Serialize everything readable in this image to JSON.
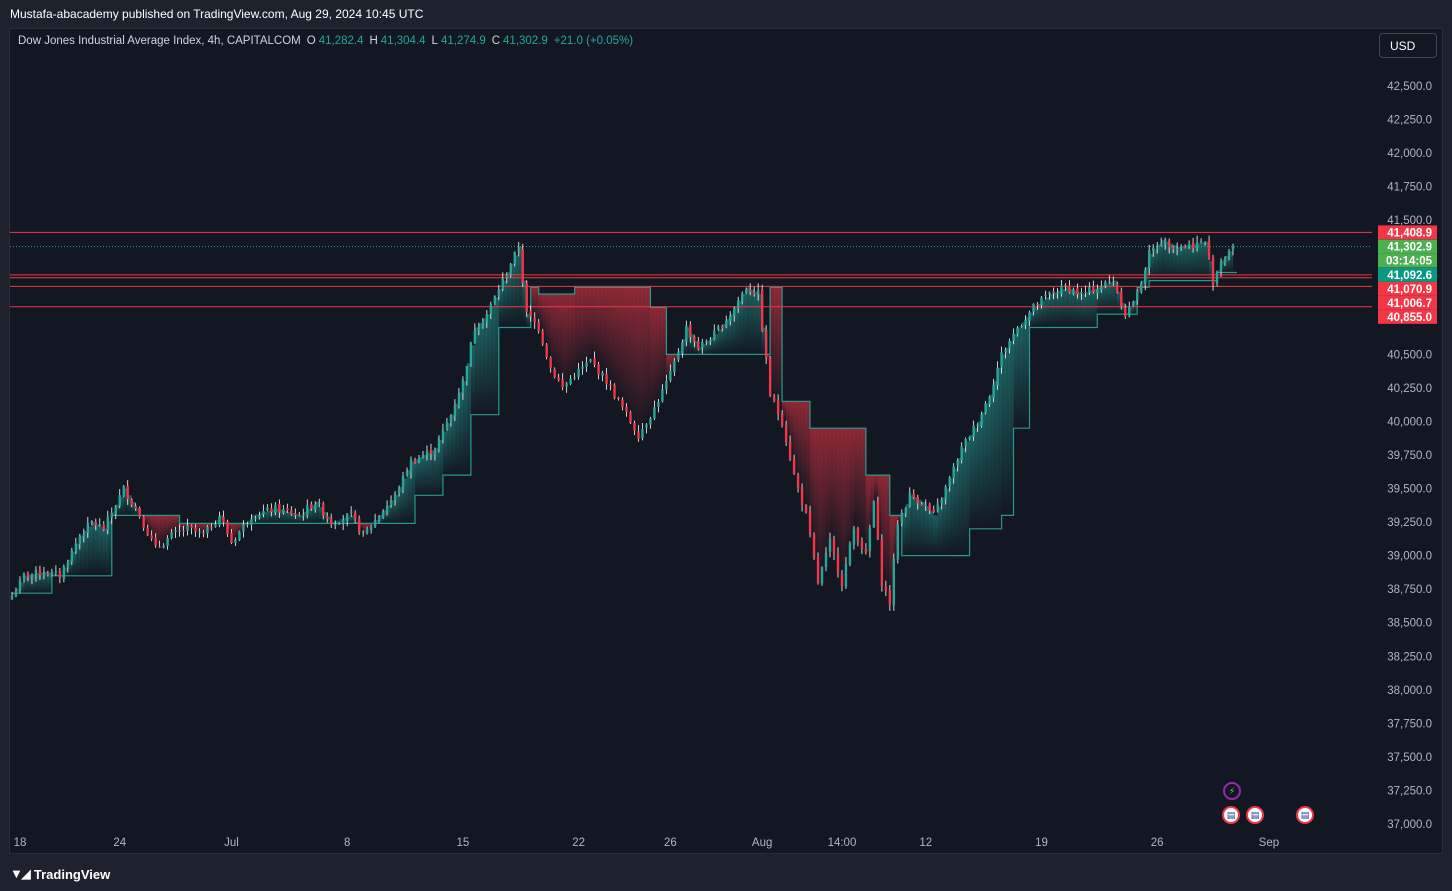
{
  "header": {
    "publisher_line": "Mustafa-abacademy published on TradingView.com, Aug 29, 2024 10:45 UTC"
  },
  "legend": {
    "symbol": "Dow Jones Industrial Average Index, 4h, CAPITALCOM",
    "o_label": "O",
    "o_value": "41,282.4",
    "h_label": "H",
    "h_value": "41,304.4",
    "l_label": "L",
    "l_value": "41,274.9",
    "c_label": "C",
    "c_value": "41,302.9",
    "change": "+21.0 (+0.05%)"
  },
  "currency_button": "USD",
  "footer": {
    "brand": "TradingView"
  },
  "colors": {
    "background": "#131722",
    "up": "#26a69a",
    "down": "#f23645",
    "last_price": "#4caf50",
    "text": "#b2b5be",
    "line": "#f23645"
  },
  "icons": {
    "event_bolt": "lightning-bolt-icon",
    "event_flag": "us-flag-icon",
    "brand": "tradingview-logo-icon"
  },
  "chart_data": {
    "type": "candlestick",
    "title": "Dow Jones Industrial Average Index, 4h, CAPITALCOM",
    "ylim": [
      36950,
      42700
    ],
    "y_ticks": [
      "42,500.0",
      "42,250.0",
      "42,000.0",
      "41,750.0",
      "41,500.0",
      "40,500.0",
      "40,250.0",
      "40,000.0",
      "39,750.0",
      "39,500.0",
      "39,250.0",
      "39,000.0",
      "38,750.0",
      "38,500.0",
      "38,250.0",
      "38,000.0",
      "37,750.0",
      "37,500.0",
      "37,250.0",
      "37,000.0"
    ],
    "y_tick_values": [
      42500,
      42250,
      42000,
      41750,
      41500,
      40500,
      40250,
      40000,
      39750,
      39500,
      39250,
      39000,
      38750,
      38500,
      38250,
      38000,
      37750,
      37500,
      37250,
      37000
    ],
    "x_ticks": [
      "18",
      "24",
      "Jul",
      "8",
      "15",
      "22",
      "26",
      "Aug",
      "14:00",
      "12",
      "19",
      "26",
      "Sep"
    ],
    "x_tick_index": [
      2,
      27,
      55,
      84,
      113,
      142,
      165,
      188,
      208,
      229,
      258,
      287,
      315
    ],
    "horizontal_levels": [
      41408.9,
      41092.6,
      41070.9,
      41006.7,
      40855.0
    ],
    "price_labels": [
      {
        "value": 41408.9,
        "text": "41,408.9",
        "kind": "down"
      },
      {
        "value": 41302.9,
        "text": "41,302.9",
        "kind": "last"
      },
      {
        "value": 41302.9,
        "text": "03:14:05",
        "kind": "countdown"
      },
      {
        "value": 41092.6,
        "text": "41,092.6",
        "kind": "up"
      },
      {
        "value": 41070.9,
        "text": "41,070.9",
        "kind": "down"
      },
      {
        "value": 41006.7,
        "text": "41,006.7",
        "kind": "down"
      },
      {
        "value": 40855.0,
        "text": "40,855.0",
        "kind": "down"
      }
    ],
    "close_anchors": [
      [
        0,
        38700
      ],
      [
        3,
        38850
      ],
      [
        8,
        38880
      ],
      [
        12,
        38850
      ],
      [
        17,
        39150
      ],
      [
        20,
        39250
      ],
      [
        23,
        39200
      ],
      [
        28,
        39500
      ],
      [
        32,
        39300
      ],
      [
        36,
        39050
      ],
      [
        40,
        39150
      ],
      [
        44,
        39200
      ],
      [
        48,
        39150
      ],
      [
        52,
        39300
      ],
      [
        55,
        39100
      ],
      [
        60,
        39300
      ],
      [
        66,
        39350
      ],
      [
        72,
        39300
      ],
      [
        76,
        39400
      ],
      [
        80,
        39250
      ],
      [
        85,
        39300
      ],
      [
        88,
        39150
      ],
      [
        92,
        39300
      ],
      [
        96,
        39450
      ],
      [
        100,
        39700
      ],
      [
        106,
        39800
      ],
      [
        110,
        40050
      ],
      [
        113,
        40300
      ],
      [
        116,
        40700
      ],
      [
        119,
        40800
      ],
      [
        123,
        41050
      ],
      [
        127,
        41300
      ],
      [
        129,
        40800
      ],
      [
        132,
        40700
      ],
      [
        135,
        40400
      ],
      [
        138,
        40250
      ],
      [
        141,
        40350
      ],
      [
        145,
        40450
      ],
      [
        149,
        40300
      ],
      [
        153,
        40100
      ],
      [
        157,
        39900
      ],
      [
        161,
        40100
      ],
      [
        165,
        40350
      ],
      [
        169,
        40700
      ],
      [
        172,
        40550
      ],
      [
        176,
        40650
      ],
      [
        180,
        40800
      ],
      [
        184,
        41000
      ],
      [
        187,
        40950
      ],
      [
        190,
        40200
      ],
      [
        193,
        40000
      ],
      [
        196,
        39600
      ],
      [
        199,
        39300
      ],
      [
        202,
        38800
      ],
      [
        205,
        39100
      ],
      [
        208,
        38800
      ],
      [
        211,
        39200
      ],
      [
        214,
        39000
      ],
      [
        216,
        39400
      ],
      [
        218,
        38800
      ],
      [
        220,
        38650
      ],
      [
        222,
        39250
      ],
      [
        225,
        39450
      ],
      [
        228,
        39400
      ],
      [
        231,
        39300
      ],
      [
        234,
        39500
      ],
      [
        238,
        39800
      ],
      [
        242,
        40000
      ],
      [
        245,
        40200
      ],
      [
        248,
        40500
      ],
      [
        252,
        40700
      ],
      [
        256,
        40850
      ],
      [
        260,
        40950
      ],
      [
        264,
        41000
      ],
      [
        268,
        40950
      ],
      [
        272,
        41000
      ],
      [
        276,
        41050
      ],
      [
        279,
        40800
      ],
      [
        282,
        40950
      ],
      [
        285,
        41250
      ],
      [
        288,
        41350
      ],
      [
        292,
        41300
      ],
      [
        296,
        41320
      ],
      [
        299,
        41340
      ],
      [
        301,
        41050
      ],
      [
        303,
        41200
      ],
      [
        306,
        41302
      ]
    ],
    "support_trend_upper": [
      [
        0,
        38720
      ],
      [
        8,
        38720
      ],
      [
        9,
        38850
      ],
      [
        23,
        38850
      ],
      [
        24,
        39300
      ],
      [
        40,
        39300
      ],
      [
        41,
        39240
      ],
      [
        88,
        39240
      ],
      [
        89,
        39240
      ],
      [
        99,
        39240
      ],
      [
        100,
        39450
      ],
      [
        106,
        39450
      ],
      [
        107,
        39600
      ],
      [
        113,
        39600
      ],
      [
        114,
        40050
      ],
      [
        120,
        40050
      ],
      [
        121,
        40700
      ],
      [
        128,
        40700
      ],
      [
        129,
        41000
      ],
      [
        130,
        41000
      ],
      [
        131,
        40950
      ],
      [
        139,
        40950
      ],
      [
        140,
        41000
      ],
      [
        158,
        41000
      ],
      [
        159,
        40850
      ],
      [
        162,
        40850
      ],
      [
        163,
        40500
      ],
      [
        168,
        40500
      ],
      [
        169,
        40500
      ],
      [
        175,
        40500
      ],
      [
        176,
        40500
      ],
      [
        183,
        40500
      ],
      [
        184,
        40500
      ],
      [
        188,
        40500
      ],
      [
        189,
        41000
      ],
      [
        191,
        41000
      ],
      [
        192,
        40150
      ],
      [
        198,
        40150
      ],
      [
        199,
        39950
      ],
      [
        208,
        39950
      ],
      [
        209,
        39950
      ],
      [
        212,
        39950
      ],
      [
        213,
        39600
      ],
      [
        218,
        39600
      ],
      [
        219,
        39300
      ],
      [
        221,
        39300
      ],
      [
        222,
        39000
      ],
      [
        238,
        39000
      ],
      [
        239,
        39200
      ],
      [
        246,
        39200
      ],
      [
        247,
        39300
      ],
      [
        249,
        39300
      ],
      [
        250,
        39950
      ],
      [
        253,
        39950
      ],
      [
        254,
        40700
      ],
      [
        270,
        40700
      ],
      [
        271,
        40800
      ],
      [
        280,
        40800
      ],
      [
        281,
        41000
      ],
      [
        283,
        41000
      ],
      [
        284,
        41050
      ],
      [
        300,
        41050
      ],
      [
        301,
        41110
      ],
      [
        306,
        41110
      ]
    ],
    "last_close": 41302.9
  }
}
